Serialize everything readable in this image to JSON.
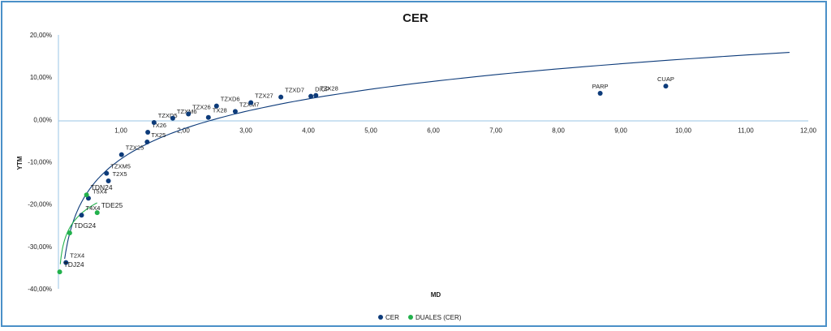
{
  "chart_data": {
    "type": "scatter",
    "title": "CER",
    "xlabel": "MD",
    "ylabel": "YTM",
    "xlim": [
      0,
      12
    ],
    "ylim": [
      -40,
      20
    ],
    "x_ticks": [
      "1,00",
      "2,00",
      "3,00",
      "4,00",
      "5,00",
      "6,00",
      "7,00",
      "8,00",
      "9,00",
      "10,00",
      "11,00",
      "12,00"
    ],
    "y_ticks": [
      "20,00%",
      "10,00%",
      "0,00%",
      "-10,00%",
      "-20,00%",
      "-30,00%",
      "-40,00%"
    ],
    "grid": false,
    "legend_position": "bottom",
    "series": [
      {
        "name": "CER",
        "color": "#0d3b7a",
        "points": [
          {
            "label": "T2X4",
            "x": 0.12,
            "y": -33.8
          },
          {
            "label": "T4X4",
            "x": 0.37,
            "y": -22.6
          },
          {
            "label": "T5X4",
            "x": 0.48,
            "y": -18.6
          },
          {
            "label": "T2X5",
            "x": 0.8,
            "y": -14.5
          },
          {
            "label": "TZXM5",
            "x": 0.77,
            "y": -12.7
          },
          {
            "label": "TZX25",
            "x": 1.01,
            "y": -8.3
          },
          {
            "label": "TX25",
            "x": 1.42,
            "y": -5.3
          },
          {
            "label": "TX26",
            "x": 1.43,
            "y": -3.0
          },
          {
            "label": "TZXD5",
            "x": 1.53,
            "y": -0.7
          },
          {
            "label": "TZXM6",
            "x": 1.83,
            "y": 0.3
          },
          {
            "label": "TZX26",
            "x": 2.08,
            "y": 1.3
          },
          {
            "label": "TX28",
            "x": 2.4,
            "y": 0.5
          },
          {
            "label": "TZXD6",
            "x": 2.53,
            "y": 3.2
          },
          {
            "label": "TZXM7",
            "x": 2.83,
            "y": 1.9
          },
          {
            "label": "TZX27",
            "x": 3.08,
            "y": 4.0
          },
          {
            "label": "TZXD7",
            "x": 3.56,
            "y": 5.3
          },
          {
            "label": "DICP",
            "x": 4.04,
            "y": 5.5
          },
          {
            "label": "TZX28",
            "x": 4.12,
            "y": 5.7
          },
          {
            "label": "PARP",
            "x": 8.67,
            "y": 6.2
          },
          {
            "label": "CUAP",
            "x": 9.72,
            "y": 7.9
          }
        ]
      },
      {
        "name": "DUALES (CER)",
        "color": "#22b14c",
        "points": [
          {
            "label": "TDJ24",
            "x": 0.02,
            "y": -36.0
          },
          {
            "label": "TDG24",
            "x": 0.18,
            "y": -26.8
          },
          {
            "label": "TDN24",
            "x": 0.45,
            "y": -17.8
          },
          {
            "label": "TDE25",
            "x": 0.62,
            "y": -22.0
          }
        ]
      }
    ],
    "trendlines": [
      {
        "series": "CER",
        "type": "logarithmic",
        "x_range": [
          0.1,
          11.7
        ]
      },
      {
        "series": "DUALES (CER)",
        "type": "logarithmic",
        "x_range": [
          0.03,
          0.62
        ]
      }
    ]
  }
}
